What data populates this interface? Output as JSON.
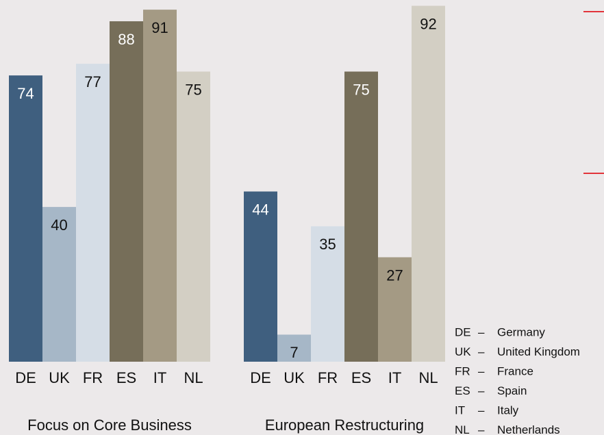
{
  "chart_data": [
    {
      "type": "bar",
      "title": "Focus on Core Business",
      "categories": [
        "DE",
        "UK",
        "FR",
        "ES",
        "IT",
        "NL"
      ],
      "values": [
        74,
        40,
        77,
        88,
        91,
        75
      ],
      "colors": [
        "#3f5f7f",
        "#a6b7c7",
        "#d5dde6",
        "#766e59",
        "#a49a84",
        "#d3cfc4"
      ],
      "label_colors": [
        "#ffffff",
        "#111111",
        "#111111",
        "#ffffff",
        "#111111",
        "#111111"
      ],
      "ylim": [
        0,
        93.5
      ]
    },
    {
      "type": "bar",
      "title": "European Restructuring",
      "categories": [
        "DE",
        "UK",
        "FR",
        "ES",
        "IT",
        "NL"
      ],
      "values": [
        44,
        7,
        35,
        75,
        27,
        92
      ],
      "colors": [
        "#3f5f7f",
        "#a6b7c7",
        "#d5dde6",
        "#766e59",
        "#a49a84",
        "#d3cfc4"
      ],
      "label_colors": [
        "#ffffff",
        "#111111",
        "#111111",
        "#ffffff",
        "#111111",
        "#111111"
      ],
      "ylim": [
        0,
        93.5
      ]
    }
  ],
  "legend": {
    "separator": "–",
    "items": [
      {
        "code": "DE",
        "name": "Germany"
      },
      {
        "code": "UK",
        "name": "United Kingdom"
      },
      {
        "code": "FR",
        "name": "France"
      },
      {
        "code": "ES",
        "name": "Spain"
      },
      {
        "code": "IT",
        "name": "Italy"
      },
      {
        "code": "NL",
        "name": "Netherlands"
      }
    ]
  }
}
